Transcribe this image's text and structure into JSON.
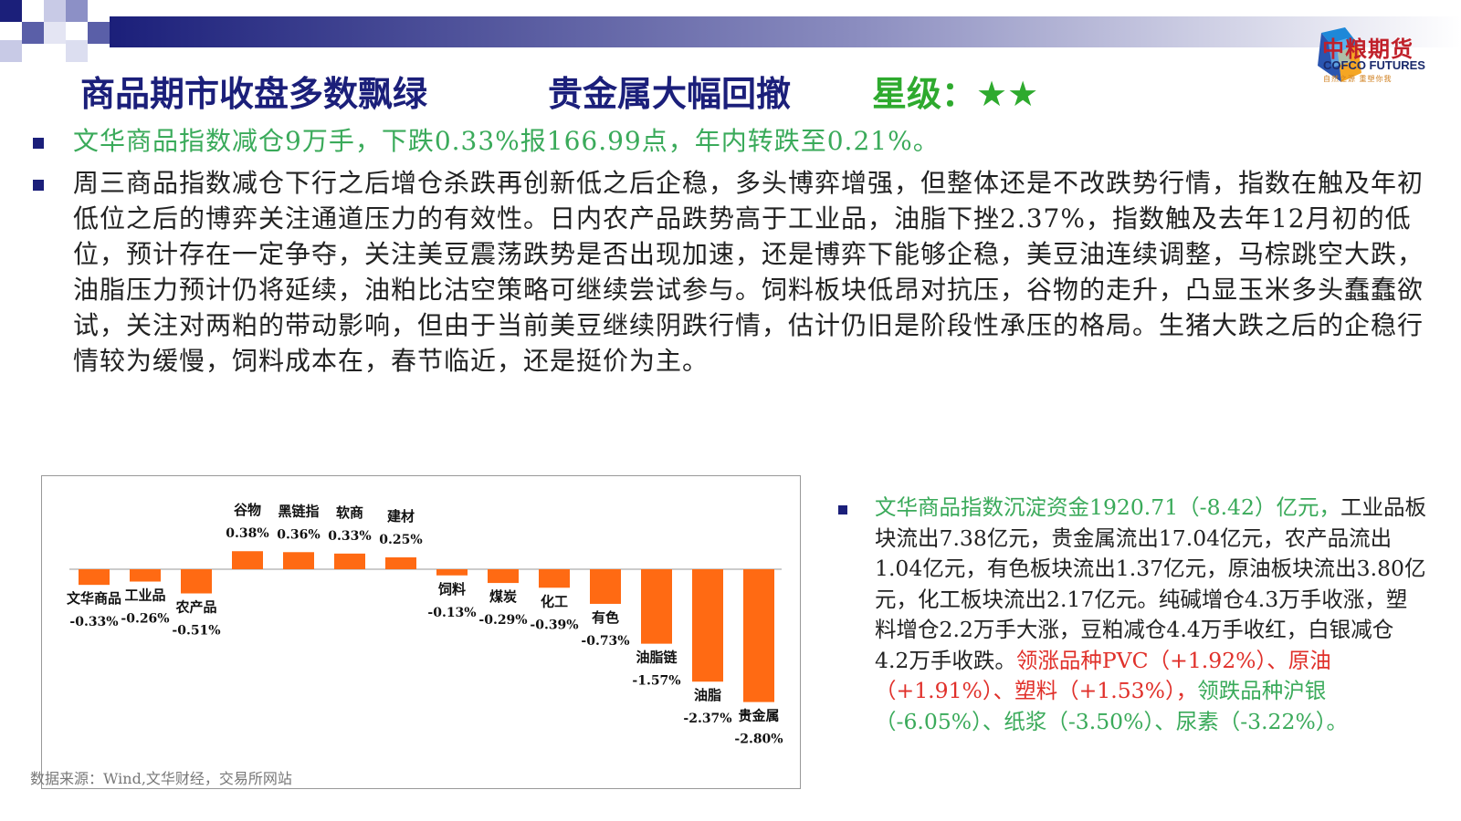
{
  "header": {
    "title_main": "商品期市收盘多数飘绿",
    "title_second": "贵金属大幅回撤",
    "rating_label": "星级：",
    "rating_stars": "★★"
  },
  "logo": {
    "name_cn": "中粮期货",
    "name_en": "COFCO FUTURES",
    "tagline": "自然之源  重塑你我"
  },
  "bullets": {
    "summary": "文华商品指数减仓9万手，下跌0.33%报166.99点，年内转跌至0.21%。",
    "analysis": "周三商品指数减仓下行之后增仓杀跌再创新低之后企稳，多头博弈增强，但整体还是不改跌势行情，指数在触及年初低位之后的博弈关注通道压力的有效性。日内农产品跌势高于工业品，油脂下挫2.37%，指数触及去年12月初的低位，预计存在一定争夺，关注美豆震荡跌势是否出现加速，还是博弈下能够企稳，美豆油连续调整，马棕跳空大跌，油脂压力预计仍将延续，油粕比沽空策略可继续尝试参与。饲料板块低昂对抗压，谷物的走升，凸显玉米多头蠢蠢欲试，关注对两粕的带动影响，但由于当前美豆继续阴跌行情，估计仍旧是阶段性承压的格局。生猪大跌之后的企稳行情较为缓慢，饲料成本在，春节临近，还是挺价为主。"
  },
  "funds": {
    "part_green_1": "文华商品指数沉淀资金1920.71（-8.42）亿元，",
    "part_dark": "工业品板块流出7.38亿元，贵金属流出17.04亿元，农产品流出1.04亿元，有色板块流出1.37亿元，原油板块流出3.80亿元，化工板块流出2.17亿元。纯碱增仓4.3万手收涨，塑料增仓2.2万手大涨，豆粕减仓4.4万手收红，白银减仓4.2万手收跌。",
    "part_red": "领涨品种PVC（+1.92%）、原油（+1.91%）、塑料（+1.53%），",
    "part_green_2": "领跌品种沪银（-6.05%）、纸浆（-3.50%）、尿素（-3.22%）。"
  },
  "source": "数据来源：Wind,文华财经，交易所网站",
  "colors": {
    "bar": "#ff6a13",
    "title": "#1b1f7a",
    "green": "#3aaa5a",
    "red": "#e0302a"
  },
  "chart_data": {
    "type": "bar",
    "categories": [
      "文华商品",
      "工业品",
      "农产品",
      "谷物",
      "黑链指",
      "软商",
      "建材",
      "饲料",
      "煤炭",
      "化工",
      "有色",
      "油脂链",
      "油脂",
      "贵金属"
    ],
    "values": [
      -0.33,
      -0.26,
      -0.51,
      0.38,
      0.36,
      0.33,
      0.25,
      -0.13,
      -0.29,
      -0.39,
      -0.73,
      -1.57,
      -2.37,
      -2.8
    ],
    "value_labels": [
      "-0.33%",
      "-0.26%",
      "-0.51%",
      "0.38%",
      "0.36%",
      "0.33%",
      "0.25%",
      "-0.13%",
      "-0.29%",
      "-0.39%",
      "-0.73%",
      "-1.57%",
      "-2.37%",
      "-2.80%"
    ],
    "title": "",
    "xlabel": "",
    "ylabel": "",
    "ylim": [
      -2.8,
      0.38
    ],
    "grid": false,
    "legend": "none"
  }
}
